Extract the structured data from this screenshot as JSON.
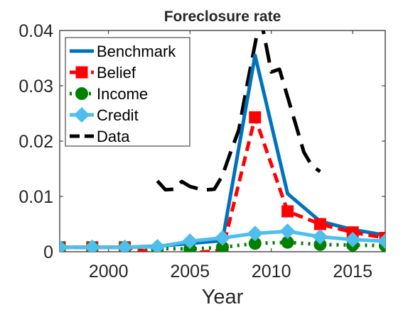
{
  "chart_data": {
    "type": "line",
    "title": "Foreclosure rate",
    "xlabel": "Year",
    "ylabel": "",
    "xlim": [
      1997,
      2017
    ],
    "ylim": [
      0,
      0.04
    ],
    "xticks": [
      2000,
      2005,
      2010,
      2015
    ],
    "yticks": [
      0,
      0.01,
      0.02,
      0.03,
      0.04
    ],
    "ytick_labels": [
      "0",
      "0.01",
      "0.02",
      "0.03",
      "0.04"
    ],
    "grid": false,
    "legend_position": "top-left",
    "series": [
      {
        "name": "Benchmark",
        "color": "#0072BD",
        "line": "solid",
        "marker": "none",
        "x": [
          1997,
          1999,
          2001,
          2003,
          2005,
          2007,
          2009,
          2011,
          2013,
          2015,
          2017
        ],
        "y": [
          0.0008,
          0.0008,
          0.0008,
          0.001,
          0.0015,
          0.002,
          0.0355,
          0.0105,
          0.0055,
          0.004,
          0.003
        ]
      },
      {
        "name": "Belief",
        "color": "#FF0000",
        "line": "dashed",
        "marker": "square",
        "x": [
          1997,
          1999,
          2001,
          2003,
          2005,
          2007,
          2009,
          2011,
          2013,
          2015,
          2017
        ],
        "y": [
          0.0008,
          0.0008,
          0.0008,
          -0.0003,
          -0.0003,
          0.0003,
          0.0243,
          0.0073,
          0.005,
          0.0035,
          0.0025
        ]
      },
      {
        "name": "Income",
        "color": "#008000",
        "line": "dotted",
        "marker": "circle",
        "x": [
          1997,
          1999,
          2001,
          2003,
          2005,
          2007,
          2009,
          2011,
          2013,
          2015,
          2017
        ],
        "y": [
          0.0008,
          0.0008,
          0.0008,
          0.0006,
          0.0005,
          0.0008,
          0.0015,
          0.0017,
          0.0013,
          0.0012,
          0.0011
        ]
      },
      {
        "name": "Credit",
        "color": "#4DBEEE",
        "line": "solid",
        "marker": "diamond",
        "x": [
          1997,
          1999,
          2001,
          2003,
          2005,
          2007,
          2009,
          2011,
          2013,
          2015,
          2017
        ],
        "y": [
          0.0008,
          0.0008,
          0.0008,
          0.0009,
          0.0019,
          0.0025,
          0.0033,
          0.0037,
          0.0027,
          0.0022,
          0.0019
        ]
      },
      {
        "name": "Data",
        "color": "#000000",
        "line": "dashed",
        "marker": "none",
        "x": [
          2003,
          2003.5,
          2004,
          2004.5,
          2005,
          2005.5,
          2006,
          2006.5,
          2007,
          2007.5,
          2008,
          2008.5,
          2009,
          2009.25,
          2009.5,
          2010,
          2010.5,
          2011,
          2011.5,
          2012,
          2012.5,
          2013
        ],
        "y": [
          0.0128,
          0.0112,
          0.0113,
          0.0127,
          0.0118,
          0.0114,
          0.0112,
          0.0113,
          0.0138,
          0.018,
          0.022,
          0.03,
          0.0375,
          0.0415,
          0.04,
          0.0325,
          0.033,
          0.028,
          0.023,
          0.018,
          0.0155,
          0.0145
        ]
      }
    ]
  }
}
